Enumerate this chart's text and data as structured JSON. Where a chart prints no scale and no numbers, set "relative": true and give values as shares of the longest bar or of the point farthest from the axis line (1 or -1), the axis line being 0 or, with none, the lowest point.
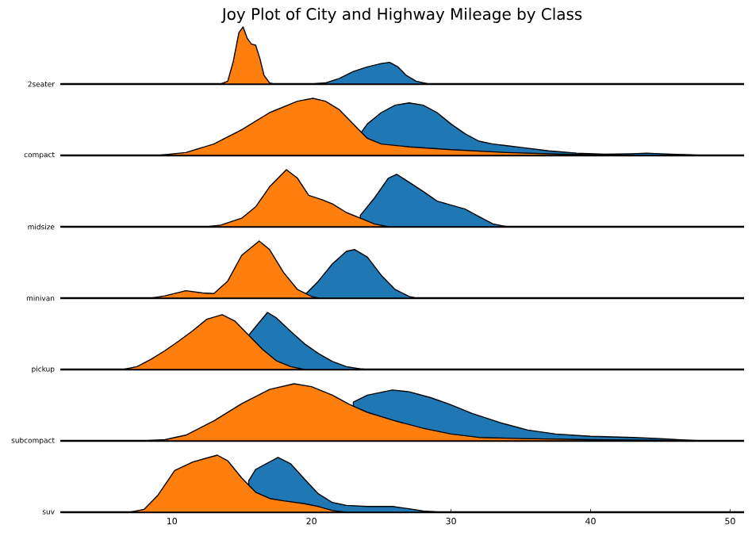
{
  "chart_data": [
    {
      "type": "area",
      "title": "Joy Plot of City and Highway Mileage by Class",
      "ylabel": "2seater",
      "relative": true,
      "xlim": [
        2,
        51
      ],
      "tick_labels": false,
      "series": [
        {
          "color": "#1f77b4",
          "x": [
            20.0,
            21.0,
            22.0,
            23.0,
            24.0,
            25.0,
            25.6,
            26.2,
            26.8,
            27.5,
            28.4
          ],
          "values": [
            0,
            0.02,
            0.1,
            0.22,
            0.3,
            0.36,
            0.38,
            0.3,
            0.15,
            0.05,
            0
          ]
        },
        {
          "color": "#ff7f0e",
          "x": [
            13.5,
            14.0,
            14.4,
            14.8,
            15.1,
            15.4,
            15.7,
            16.0,
            16.3,
            16.6,
            17.0,
            17.3
          ],
          "values": [
            0,
            0.05,
            0.4,
            0.9,
            1.0,
            0.8,
            0.7,
            0.68,
            0.45,
            0.15,
            0.02,
            0
          ]
        }
      ]
    },
    {
      "type": "area",
      "ylabel": "compact",
      "relative": true,
      "xlim": [
        2,
        51
      ],
      "tick_labels": false,
      "series": [
        {
          "color": "#1f77b4",
          "x": [
            23.5,
            24,
            25,
            26,
            27,
            28,
            29,
            30,
            31,
            32,
            33,
            34,
            35,
            37,
            39,
            41,
            43,
            44,
            45,
            47,
            48
          ],
          "values": [
            0.38,
            0.55,
            0.75,
            0.88,
            0.92,
            0.88,
            0.75,
            0.55,
            0.38,
            0.25,
            0.2,
            0.17,
            0.14,
            0.08,
            0.04,
            0.02,
            0.03,
            0.04,
            0.03,
            0.01,
            0
          ]
        },
        {
          "color": "#ff7f0e",
          "x": [
            9,
            11,
            13,
            15,
            17,
            19,
            20.1,
            21,
            22,
            23,
            24,
            25,
            27,
            30,
            34,
            38,
            42,
            46
          ],
          "values": [
            0,
            0.05,
            0.2,
            0.45,
            0.75,
            0.95,
            1.0,
            0.95,
            0.8,
            0.55,
            0.3,
            0.2,
            0.15,
            0.1,
            0.05,
            0.02,
            0.01,
            0
          ]
        }
      ]
    },
    {
      "type": "area",
      "ylabel": "midsize",
      "relative": true,
      "xlim": [
        2,
        51
      ],
      "tick_labels": false,
      "series": [
        {
          "color": "#1f77b4",
          "x": [
            23.5,
            24.5,
            25.5,
            26.1,
            27,
            28,
            29,
            30,
            31,
            32,
            33,
            34
          ],
          "values": [
            0.2,
            0.5,
            0.85,
            0.92,
            0.78,
            0.62,
            0.45,
            0.38,
            0.31,
            0.18,
            0.05,
            0
          ]
        },
        {
          "color": "#ff7f0e",
          "x": [
            12.5,
            13.5,
            15,
            16,
            17,
            18.2,
            19,
            19.8,
            20.8,
            21.5,
            22.5,
            23.5,
            24.5,
            25.5
          ],
          "values": [
            0,
            0.03,
            0.15,
            0.35,
            0.7,
            1.0,
            0.85,
            0.55,
            0.47,
            0.4,
            0.25,
            0.15,
            0.05,
            0
          ]
        }
      ]
    },
    {
      "type": "area",
      "ylabel": "minivan",
      "relative": true,
      "xlim": [
        2,
        51
      ],
      "tick_labels": false,
      "series": [
        {
          "color": "#1f77b4",
          "x": [
            18.5,
            19.5,
            20.5,
            21.5,
            22.5,
            23.1,
            24,
            25,
            26,
            27,
            27.5
          ],
          "values": [
            0,
            0.05,
            0.3,
            0.6,
            0.82,
            0.85,
            0.72,
            0.4,
            0.15,
            0.03,
            0
          ]
        },
        {
          "color": "#ff7f0e",
          "x": [
            8.5,
            9.5,
            11,
            12.2,
            13,
            14,
            15,
            16.25,
            17,
            18,
            19,
            20,
            20.5
          ],
          "values": [
            0,
            0.04,
            0.13,
            0.09,
            0.08,
            0.3,
            0.75,
            1.0,
            0.85,
            0.45,
            0.15,
            0.03,
            0
          ]
        }
      ]
    },
    {
      "type": "area",
      "ylabel": "pickup",
      "relative": true,
      "xlim": [
        2,
        51
      ],
      "tick_labels": false,
      "series": [
        {
          "color": "#1f77b4",
          "x": [
            15.5,
            16.85,
            17.5,
            18.5,
            19.5,
            20.5,
            21.5,
            22.5,
            23.5,
            24
          ],
          "values": [
            0.6,
            1.0,
            0.9,
            0.67,
            0.45,
            0.28,
            0.14,
            0.05,
            0.01,
            0
          ]
        },
        {
          "color": "#ff7f0e",
          "x": [
            6.5,
            7.5,
            8.5,
            9.5,
            10.5,
            11.5,
            12.5,
            13.6,
            14.5,
            15.5,
            16.5,
            17.5,
            18.5,
            19.5
          ],
          "values": [
            0,
            0.05,
            0.18,
            0.33,
            0.5,
            0.68,
            0.88,
            0.96,
            0.85,
            0.6,
            0.35,
            0.15,
            0.05,
            0
          ]
        }
      ]
    },
    {
      "type": "area",
      "ylabel": "subcompact",
      "relative": true,
      "xlim": [
        2,
        51
      ],
      "tick_labels": false,
      "series": [
        {
          "color": "#1f77b4",
          "x": [
            23,
            24,
            25.8,
            27,
            28.5,
            29.9,
            31.5,
            33.5,
            35.5,
            37.5,
            40,
            43,
            45,
            47,
            48
          ],
          "values": [
            0.68,
            0.8,
            0.89,
            0.86,
            0.76,
            0.64,
            0.48,
            0.32,
            0.19,
            0.12,
            0.08,
            0.06,
            0.04,
            0.01,
            0
          ]
        },
        {
          "color": "#ff7f0e",
          "x": [
            8,
            9.5,
            11,
            13,
            15,
            17,
            18.75,
            20,
            21.5,
            22.7,
            24,
            26,
            28,
            30,
            32,
            35,
            40,
            45,
            48
          ],
          "values": [
            0,
            0.02,
            0.1,
            0.35,
            0.65,
            0.9,
            1.0,
            0.95,
            0.8,
            0.64,
            0.5,
            0.35,
            0.22,
            0.12,
            0.06,
            0.04,
            0.02,
            0.01,
            0
          ]
        }
      ]
    },
    {
      "type": "area",
      "ylabel": "suv",
      "relative": true,
      "xlim": [
        2,
        51
      ],
      "xticks": [
        10,
        20,
        30,
        40,
        50
      ],
      "tick_labels": "x",
      "series": [
        {
          "color": "#1f77b4",
          "x": [
            15.5,
            16,
            17.6,
            18.5,
            19.5,
            20.5,
            21.5,
            22.5,
            24,
            25.8,
            27,
            28,
            29.2
          ],
          "values": [
            0.55,
            0.75,
            0.96,
            0.85,
            0.58,
            0.32,
            0.17,
            0.12,
            0.1,
            0.1,
            0.06,
            0.02,
            0
          ]
        },
        {
          "color": "#ff7f0e",
          "x": [
            7,
            8,
            9,
            10.2,
            11.5,
            13.25,
            14,
            15,
            16,
            17,
            18,
            19.5,
            20.5,
            21.5,
            22.5
          ],
          "values": [
            0,
            0.05,
            0.3,
            0.73,
            0.88,
            1.0,
            0.9,
            0.6,
            0.35,
            0.24,
            0.2,
            0.15,
            0.1,
            0.03,
            0
          ]
        }
      ]
    }
  ]
}
